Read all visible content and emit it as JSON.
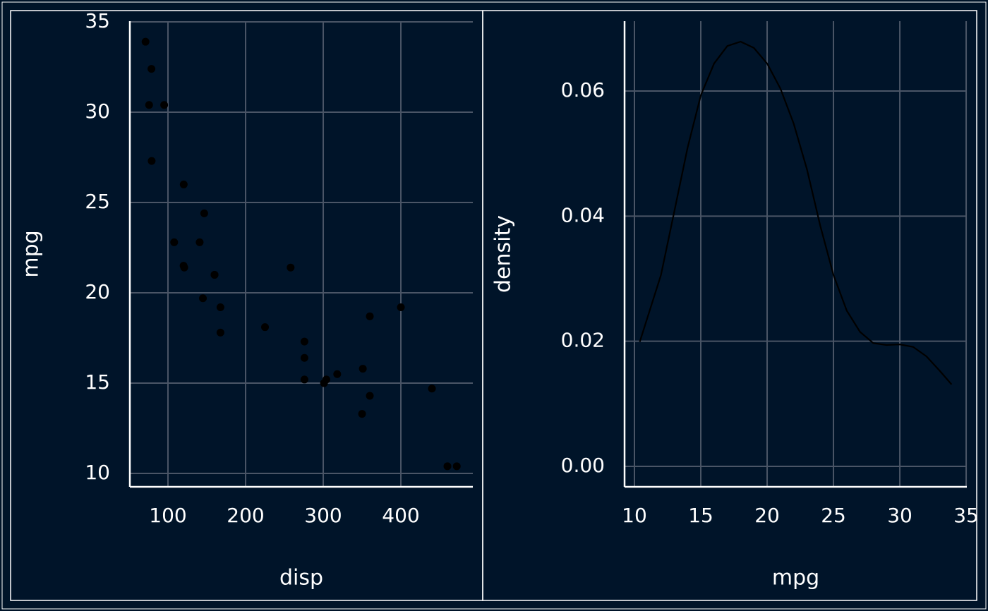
{
  "chart_data": [
    {
      "type": "scatter",
      "x_label": "disp",
      "y_label": "mpg",
      "color": "#000000",
      "grid": true,
      "x": [
        160,
        160,
        108,
        258,
        360,
        225,
        360,
        146.7,
        140.8,
        167.6,
        167.6,
        275.8,
        275.8,
        275.8,
        472,
        460,
        440,
        78.7,
        75.7,
        71.1,
        120.1,
        318,
        304,
        350,
        400,
        79,
        120.3,
        95.1,
        351,
        145,
        301,
        121
      ],
      "y": [
        21.0,
        21.0,
        22.8,
        21.4,
        18.7,
        18.1,
        14.3,
        24.4,
        22.8,
        19.2,
        17.8,
        16.4,
        17.3,
        15.2,
        10.4,
        10.4,
        14.7,
        32.4,
        30.4,
        33.9,
        21.5,
        15.5,
        15.2,
        13.3,
        19.2,
        27.3,
        26.0,
        30.4,
        15.8,
        19.7,
        15.0,
        21.4
      ],
      "xlim": [
        50.9,
        492.7
      ],
      "ylim": [
        9.26,
        35.04
      ],
      "xticks": [
        100,
        200,
        300,
        400
      ],
      "yticks": [
        10,
        15,
        20,
        25,
        30,
        35
      ]
    },
    {
      "type": "line",
      "x_label": "mpg",
      "y_label": "density",
      "color": "#000000",
      "grid": true,
      "x": [
        10.4,
        12,
        13,
        14,
        15,
        16,
        17,
        18,
        19,
        20,
        21,
        22,
        23,
        24,
        25,
        26,
        27,
        28,
        29,
        30,
        31,
        32,
        33,
        33.9
      ],
      "y": [
        0.0199,
        0.0306,
        0.0407,
        0.0509,
        0.0593,
        0.0644,
        0.0672,
        0.0679,
        0.0669,
        0.0644,
        0.0604,
        0.0548,
        0.0475,
        0.0385,
        0.0306,
        0.0249,
        0.0215,
        0.0197,
        0.0194,
        0.0195,
        0.0191,
        0.0176,
        0.0153,
        0.0131
      ],
      "xlim": [
        9.255,
        35.05
      ],
      "ylim": [
        -0.00327,
        0.07117
      ],
      "xticks": [
        10,
        15,
        20,
        25,
        30,
        35
      ],
      "yticks": [
        {
          "value": 0,
          "label": "0.00"
        },
        0.02,
        0.04,
        0.06
      ]
    }
  ]
}
